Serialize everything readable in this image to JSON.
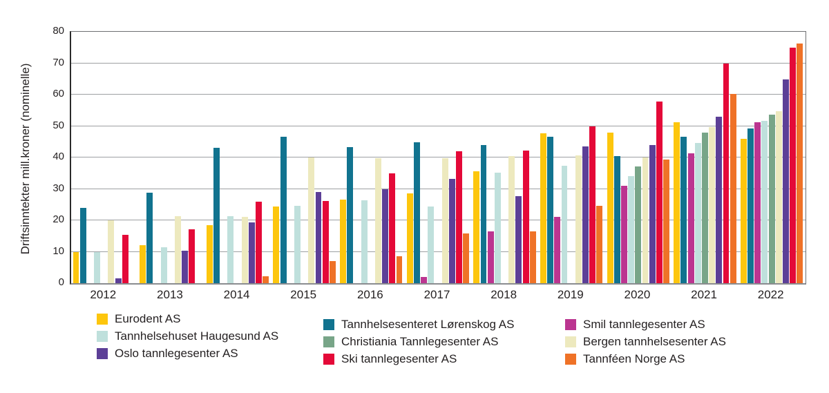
{
  "chart_data": {
    "type": "bar",
    "title": "",
    "ylabel": "Driftsinntekter mill.kroner (nominelle)",
    "xlabel": "",
    "ylim": [
      0,
      80
    ],
    "ytick_step": 10,
    "grid": "horizontal",
    "legend_position": "bottom",
    "categories": [
      "2012",
      "2013",
      "2014",
      "2015",
      "2016",
      "2017",
      "2018",
      "2019",
      "2020",
      "2021",
      "2022"
    ],
    "series": [
      {
        "name": "Eurodent AS",
        "color": "#FDC60D",
        "values": [
          10,
          12,
          18.5,
          24.4,
          26.5,
          28.5,
          35.5,
          47.8,
          47.9,
          51.2,
          45.9
        ]
      },
      {
        "name": "Tannhelsesenteret Lørenskog AS",
        "color": "#11738F",
        "values": [
          24,
          28.7,
          43,
          46.5,
          43.3,
          44.8,
          44,
          46.6,
          40.4,
          46.6,
          49.2
        ]
      },
      {
        "name": "Smil tannlegesenter AS",
        "color": "#BB3590",
        "values": [
          null,
          null,
          null,
          null,
          null,
          2,
          16.5,
          21,
          31,
          41.3,
          51.3
        ]
      },
      {
        "name": "Tannhelsehuset Haugesund AS",
        "color": "#BFE0DC",
        "values": [
          10,
          11.5,
          21.3,
          24.7,
          26.3,
          24.4,
          35.2,
          37.4,
          34,
          44.7,
          51.6
        ]
      },
      {
        "name": "Christiania Tannlegesenter AS",
        "color": "#78A588",
        "values": [
          null,
          null,
          null,
          null,
          null,
          null,
          null,
          null,
          37.1,
          47.9,
          53.6
        ]
      },
      {
        "name": "Bergen tannhelsesenter AS",
        "color": "#EDE9BE",
        "values": [
          20,
          21.3,
          21,
          39.9,
          39.7,
          39.8,
          40.5,
          40.6,
          40,
          49.6,
          54.8
        ]
      },
      {
        "name": "Oslo tannlegesenter AS",
        "color": "#5C3F97",
        "values": [
          1.5,
          10.4,
          19.3,
          29,
          30,
          33.3,
          27.8,
          43.5,
          43.9,
          52.9,
          64.8
        ]
      },
      {
        "name": "Ski tannlegesenter AS",
        "color": "#E40938",
        "values": [
          15.3,
          17.2,
          26,
          26.2,
          35,
          42,
          42.3,
          49.8,
          57.8,
          70,
          74.9
        ]
      },
      {
        "name": "Tannféen Norge AS",
        "color": "#EF7227",
        "values": [
          null,
          null,
          2.3,
          7,
          8.5,
          15.8,
          16.4,
          24.6,
          39.4,
          60.3,
          76.2
        ]
      }
    ],
    "legend_columns": [
      [
        "Eurodent AS",
        "Tannhelsehuset Haugesund AS",
        "Oslo tannlegesenter AS"
      ],
      [
        "Tannhelsesenteret Lørenskog AS",
        "Christiania Tannlegesenter AS",
        "Ski tannlegesenter AS"
      ],
      [
        "Smil tannlegesenter AS",
        "Bergen tannhelsesenter AS",
        "Tannféen Norge AS"
      ]
    ]
  }
}
